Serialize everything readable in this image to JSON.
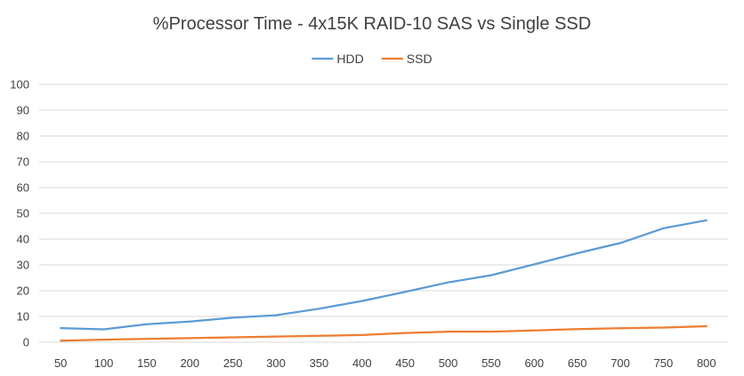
{
  "chart_data": {
    "type": "line",
    "title": "%Processor Time - 4x15K RAID-10 SAS vs Single SSD",
    "xlabel": "",
    "ylabel": "",
    "categories": [
      "50",
      "100",
      "150",
      "200",
      "250",
      "300",
      "350",
      "400",
      "450",
      "500",
      "550",
      "600",
      "650",
      "700",
      "750",
      "800"
    ],
    "ylim": [
      0,
      100
    ],
    "yticks": [
      0,
      10,
      20,
      30,
      40,
      50,
      60,
      70,
      80,
      90,
      100
    ],
    "grid": true,
    "legend_position": "top",
    "series": [
      {
        "name": "HDD",
        "color": "#5b9bd5",
        "values": [
          5.5,
          5,
          7,
          8,
          9.5,
          10.5,
          13,
          16,
          19.5,
          23.2,
          26,
          30.2,
          34.5,
          38.5,
          44.2,
          47.3
        ]
      },
      {
        "name": "SSD",
        "color": "#ed7d31",
        "values": [
          0.6,
          1,
          1.3,
          1.6,
          1.9,
          2.2,
          2.5,
          2.8,
          3.6,
          4.1,
          4.1,
          4.6,
          5.1,
          5.4,
          5.7,
          6.2
        ]
      }
    ]
  }
}
